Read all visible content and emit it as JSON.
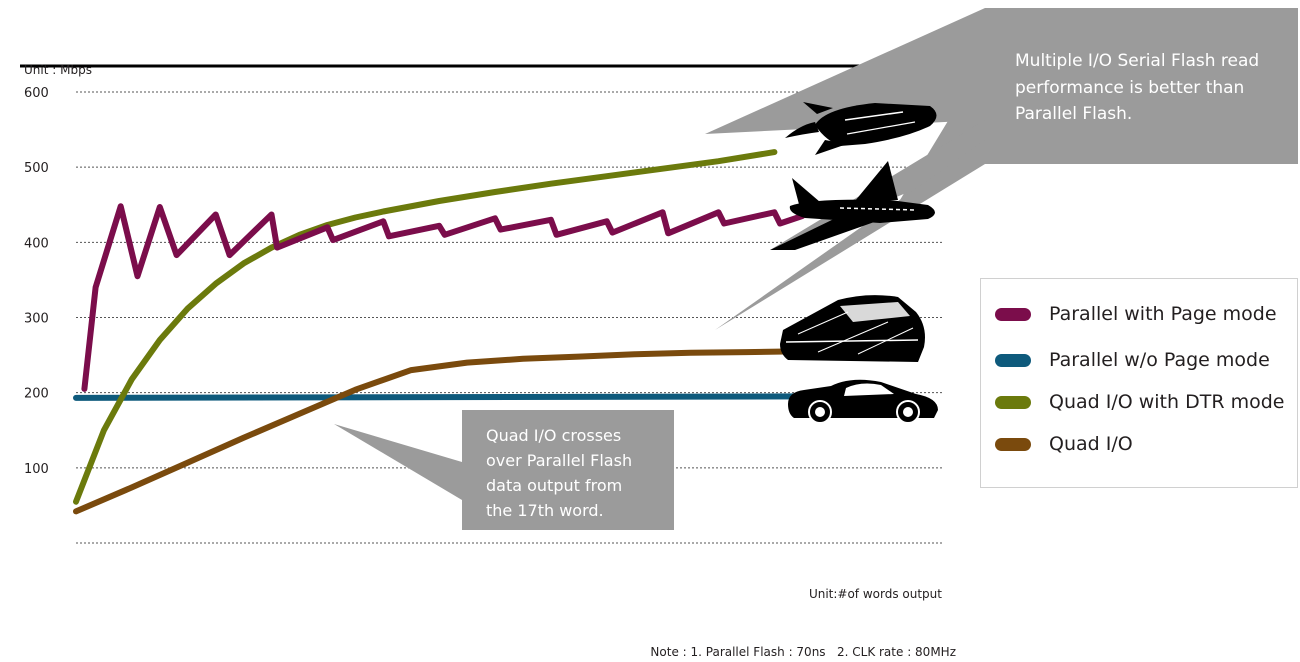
{
  "chart_data": {
    "type": "line",
    "title": "",
    "ylabel": "Unit : Mbps",
    "xlabel": "Unit:#of words output",
    "note": "Note : 1. Parallel Flash : 70ns   2. CLK rate : 80MHz",
    "ylim": [
      0,
      600
    ],
    "yticks": [
      100,
      200,
      300,
      400,
      500,
      600
    ],
    "xlim": [
      1,
      32
    ],
    "grid": true,
    "legend_position": "right",
    "series": [
      {
        "name": "Parallel with Page mode",
        "color": "#7b0d4b",
        "x": [
          1.3,
          1.7,
          2.6,
          3.2,
          4.0,
          4.6,
          6.0,
          6.5,
          8.0,
          8.2,
          10.0,
          10.2,
          12.0,
          12.2,
          14.0,
          14.2,
          16.0,
          16.2,
          18.0,
          18.2,
          20.0,
          20.2,
          22.0,
          22.2,
          24.0,
          24.2,
          26.0,
          26.2,
          27.0
        ],
        "y": [
          205,
          340,
          448,
          355,
          447,
          383,
          437,
          383,
          437,
          393,
          420,
          403,
          428,
          408,
          422,
          410,
          432,
          417,
          430,
          410,
          428,
          413,
          440,
          412,
          440,
          425,
          440,
          425,
          435
        ]
      },
      {
        "name": "Parallel w/o Page mode",
        "color": "#0e5a7c",
        "x": [
          1,
          27
        ],
        "y": [
          193,
          195
        ]
      },
      {
        "name": "Quad I/O with DTR mode",
        "color": "#6b7a0c",
        "x": [
          1,
          2,
          3,
          4,
          5,
          6,
          7,
          8,
          9,
          10,
          11,
          12,
          14,
          16,
          18,
          20,
          22,
          24,
          26
        ],
        "y": [
          55,
          150,
          218,
          270,
          312,
          345,
          372,
          393,
          410,
          423,
          433,
          441,
          455,
          467,
          478,
          488,
          498,
          508,
          520
        ]
      },
      {
        "name": "Quad I/O",
        "color": "#7a4a0d",
        "x": [
          1,
          3,
          5,
          7,
          9,
          11,
          13,
          15,
          17,
          19,
          21,
          23,
          25,
          27
        ],
        "y": [
          42,
          74,
          107,
          140,
          172,
          204,
          230,
          240,
          245,
          248,
          251,
          253,
          254,
          255
        ]
      }
    ],
    "annotations": [
      "Quad I/O crosses over Parallel Flash data output from the 17th word.",
      "Multiple I/O Serial Flash read performance is better than Parallel Flash."
    ]
  },
  "callouts": {
    "top_right": [
      "Multiple I/O Serial Flash read",
      "performance is better than",
      "Parallel Flash."
    ],
    "middle": [
      "Quad I/O crosses",
      "over Parallel Flash",
      "data output from",
      "the 17th word."
    ]
  },
  "icons": [
    "rocket-icon",
    "airplane-icon",
    "train-icon",
    "car-icon"
  ]
}
